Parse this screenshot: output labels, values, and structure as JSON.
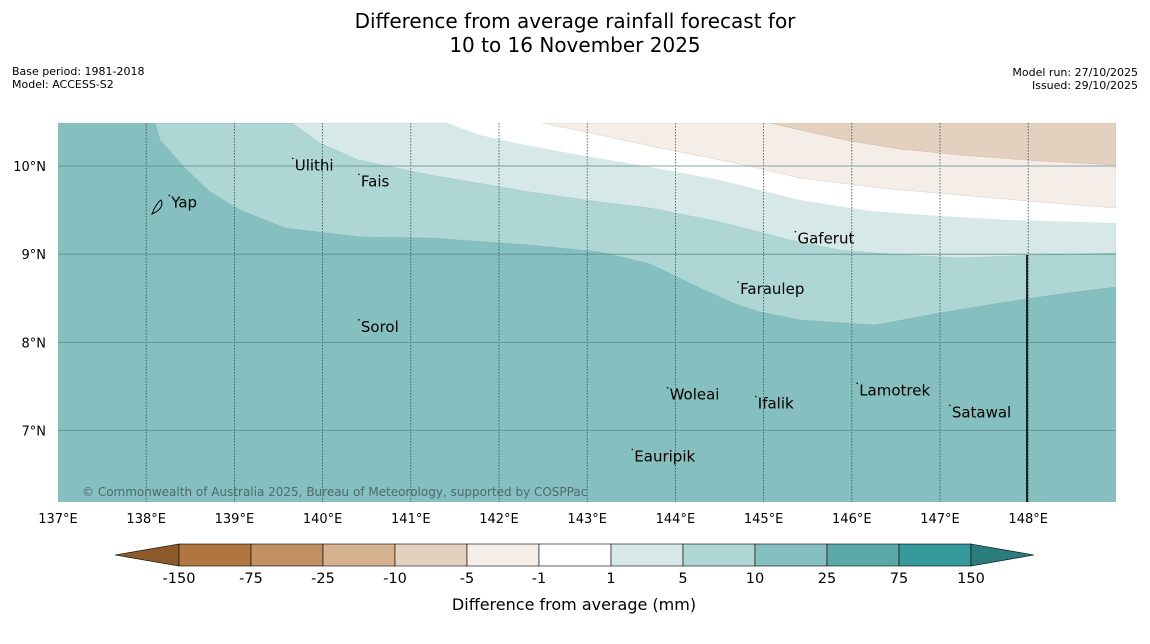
{
  "title": {
    "line1": "Difference from average rainfall forecast for",
    "line2": "10 to 16 November 2025"
  },
  "meta_left": {
    "base_period": "Base period: 1981-2018",
    "model": "Model: ACCESS-S2"
  },
  "meta_right": {
    "model_run": "Model run: 27/10/2025",
    "issued": "Issued: 29/10/2025"
  },
  "map": {
    "lon_range": [
      137,
      149
    ],
    "lat_range": [
      6.3,
      10.5
    ],
    "lon_ticks": [
      "137°E",
      "138°E",
      "139°E",
      "140°E",
      "141°E",
      "142°E",
      "143°E",
      "144°E",
      "145°E",
      "146°E",
      "147°E",
      "148°E"
    ],
    "lat_ticks": [
      "10°N",
      "9°N",
      "8°N",
      "7°N"
    ],
    "places": [
      {
        "name": "Yap",
        "lon": 138.25,
        "lat": 9.53
      },
      {
        "name": "Ulithi",
        "lon": 139.65,
        "lat": 9.95
      },
      {
        "name": "Fais",
        "lon": 140.4,
        "lat": 9.77
      },
      {
        "name": "Gaferut",
        "lon": 145.35,
        "lat": 9.12
      },
      {
        "name": "Faraulep",
        "lon": 144.7,
        "lat": 8.55
      },
      {
        "name": "Sorol",
        "lon": 140.4,
        "lat": 8.12
      },
      {
        "name": "Woleai",
        "lon": 143.9,
        "lat": 7.35
      },
      {
        "name": "Ifalik",
        "lon": 144.9,
        "lat": 7.25
      },
      {
        "name": "Lamotrek",
        "lon": 146.05,
        "lat": 7.4
      },
      {
        "name": "Satawal",
        "lon": 147.1,
        "lat": 7.15
      },
      {
        "name": "Eauripik",
        "lon": 143.5,
        "lat": 6.65
      }
    ],
    "copyright": "© Commonwealth of Australia 2025, Bureau of Meteorology, supported by COSPPac"
  },
  "colorbar": {
    "title": "Difference from average (mm)",
    "labels": [
      "-150",
      "-75",
      "-25",
      "-10",
      "-5",
      "-1",
      "1",
      "5",
      "10",
      "25",
      "75",
      "150"
    ],
    "colors": [
      "#b07540",
      "#c29065",
      "#d6b290",
      "#e3d0bf",
      "#f4ede8",
      "#ffffff",
      "#d6e9e8",
      "#aed6d5",
      "#85bfbf",
      "#5aa8a8",
      "#36999a"
    ],
    "low_extend_color": "#8f5a2a",
    "high_extend_color": "#2b7c7c"
  }
}
